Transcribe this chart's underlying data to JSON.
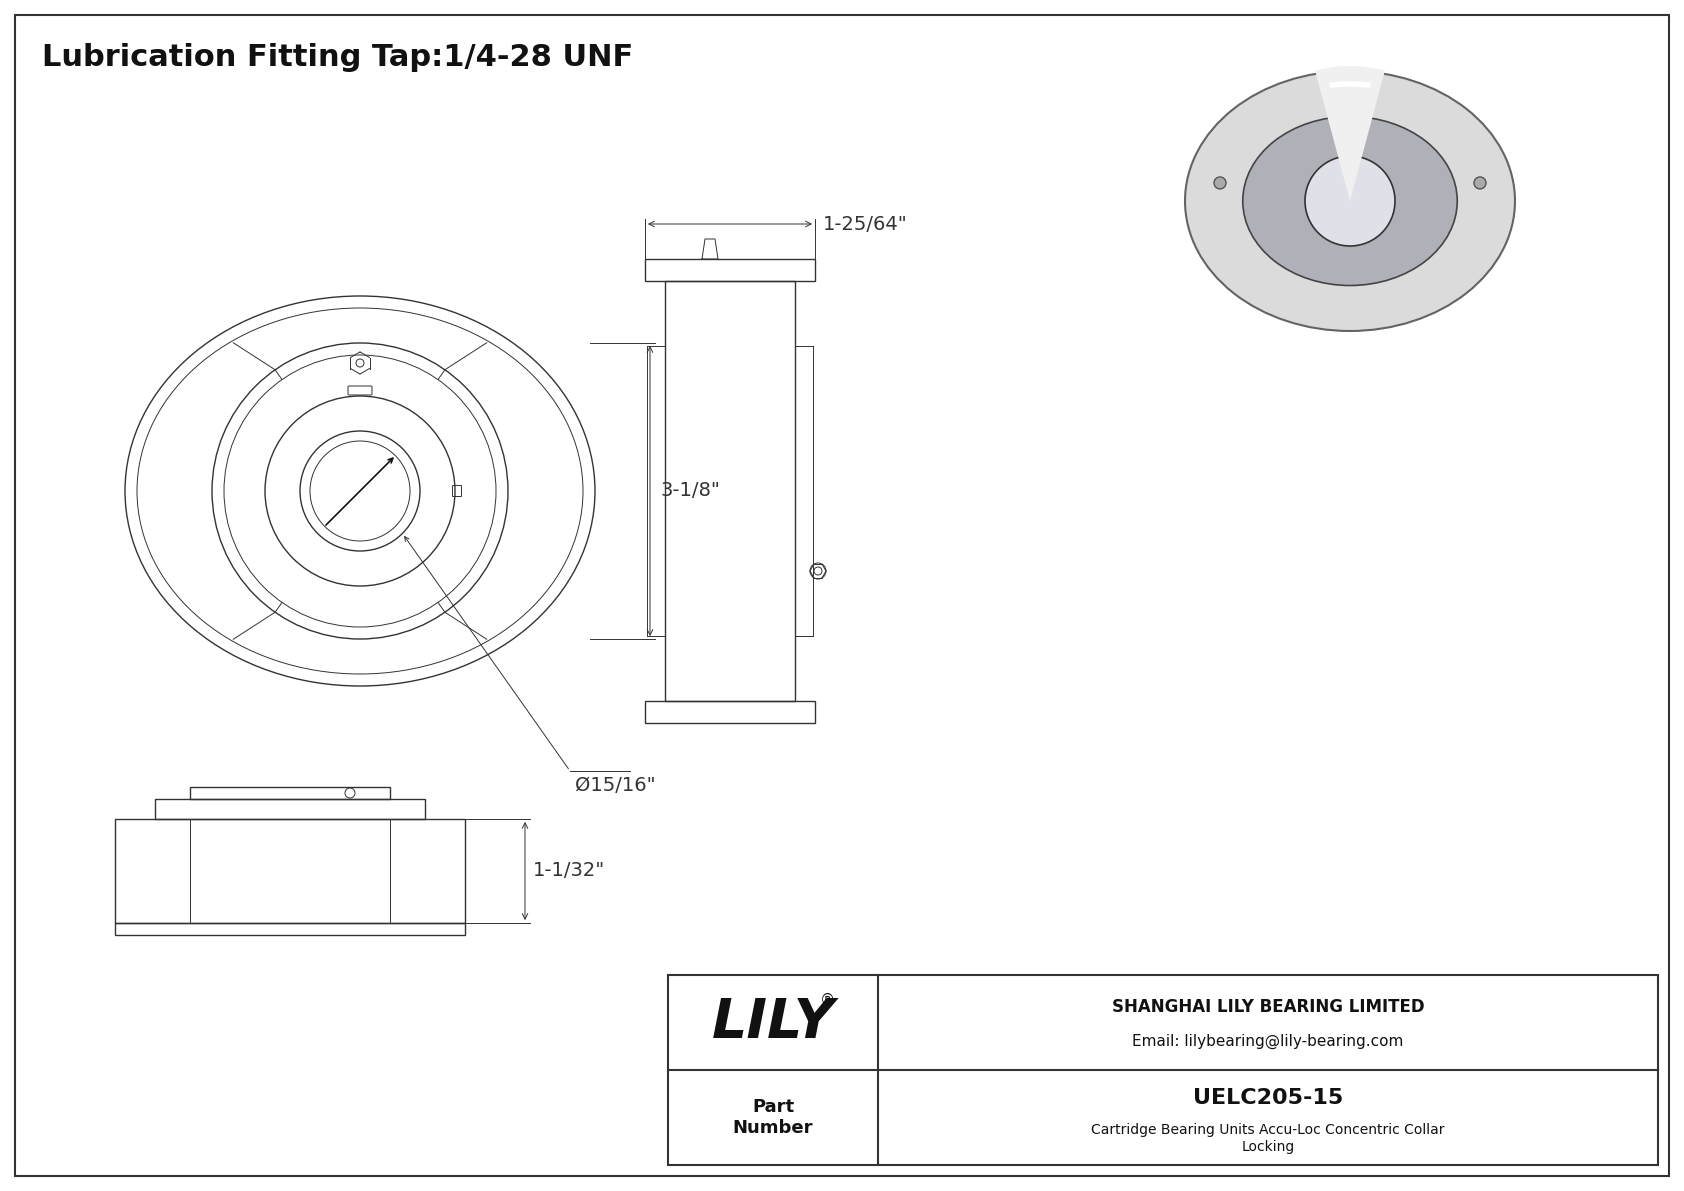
{
  "bg_color": "#ffffff",
  "line_color": "#333333",
  "title": "Lubrication Fitting Tap:1/4-28 UNF",
  "title_fontsize": 22,
  "dim_3_1_8": "3-1/8\"",
  "dim_15_16": "Ø15/16\"",
  "dim_1_25_64": "1-25/64\"",
  "dim_1_1_32": "1-1/32\"",
  "company_name": "SHANGHAI LILY BEARING LIMITED",
  "company_email": "Email: lilybearing@lily-bearing.com",
  "part_label": "Part\nNumber",
  "part_number": "UELC205-15",
  "part_desc": "Cartridge Bearing Units Accu-Loc Concentric Collar\nLocking",
  "logo_text": "LILY",
  "logo_reg": "®"
}
